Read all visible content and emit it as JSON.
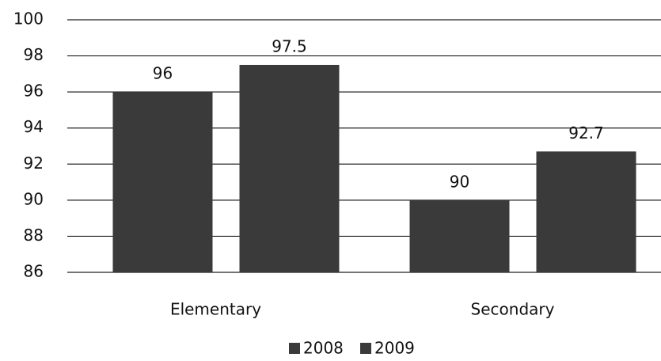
{
  "chart_data": {
    "type": "bar",
    "categories": [
      "Elementary",
      "Secondary"
    ],
    "series": [
      {
        "name": "2008",
        "color": "#3a3a3a",
        "values": [
          96,
          90
        ]
      },
      {
        "name": "2009",
        "color": "#3a3a3a",
        "values": [
          97.5,
          92.7
        ]
      }
    ],
    "ylim": [
      86,
      100
    ],
    "yticks": [
      86,
      88,
      90,
      92,
      94,
      96,
      98,
      100
    ],
    "grid": true,
    "legend": "bottom"
  }
}
